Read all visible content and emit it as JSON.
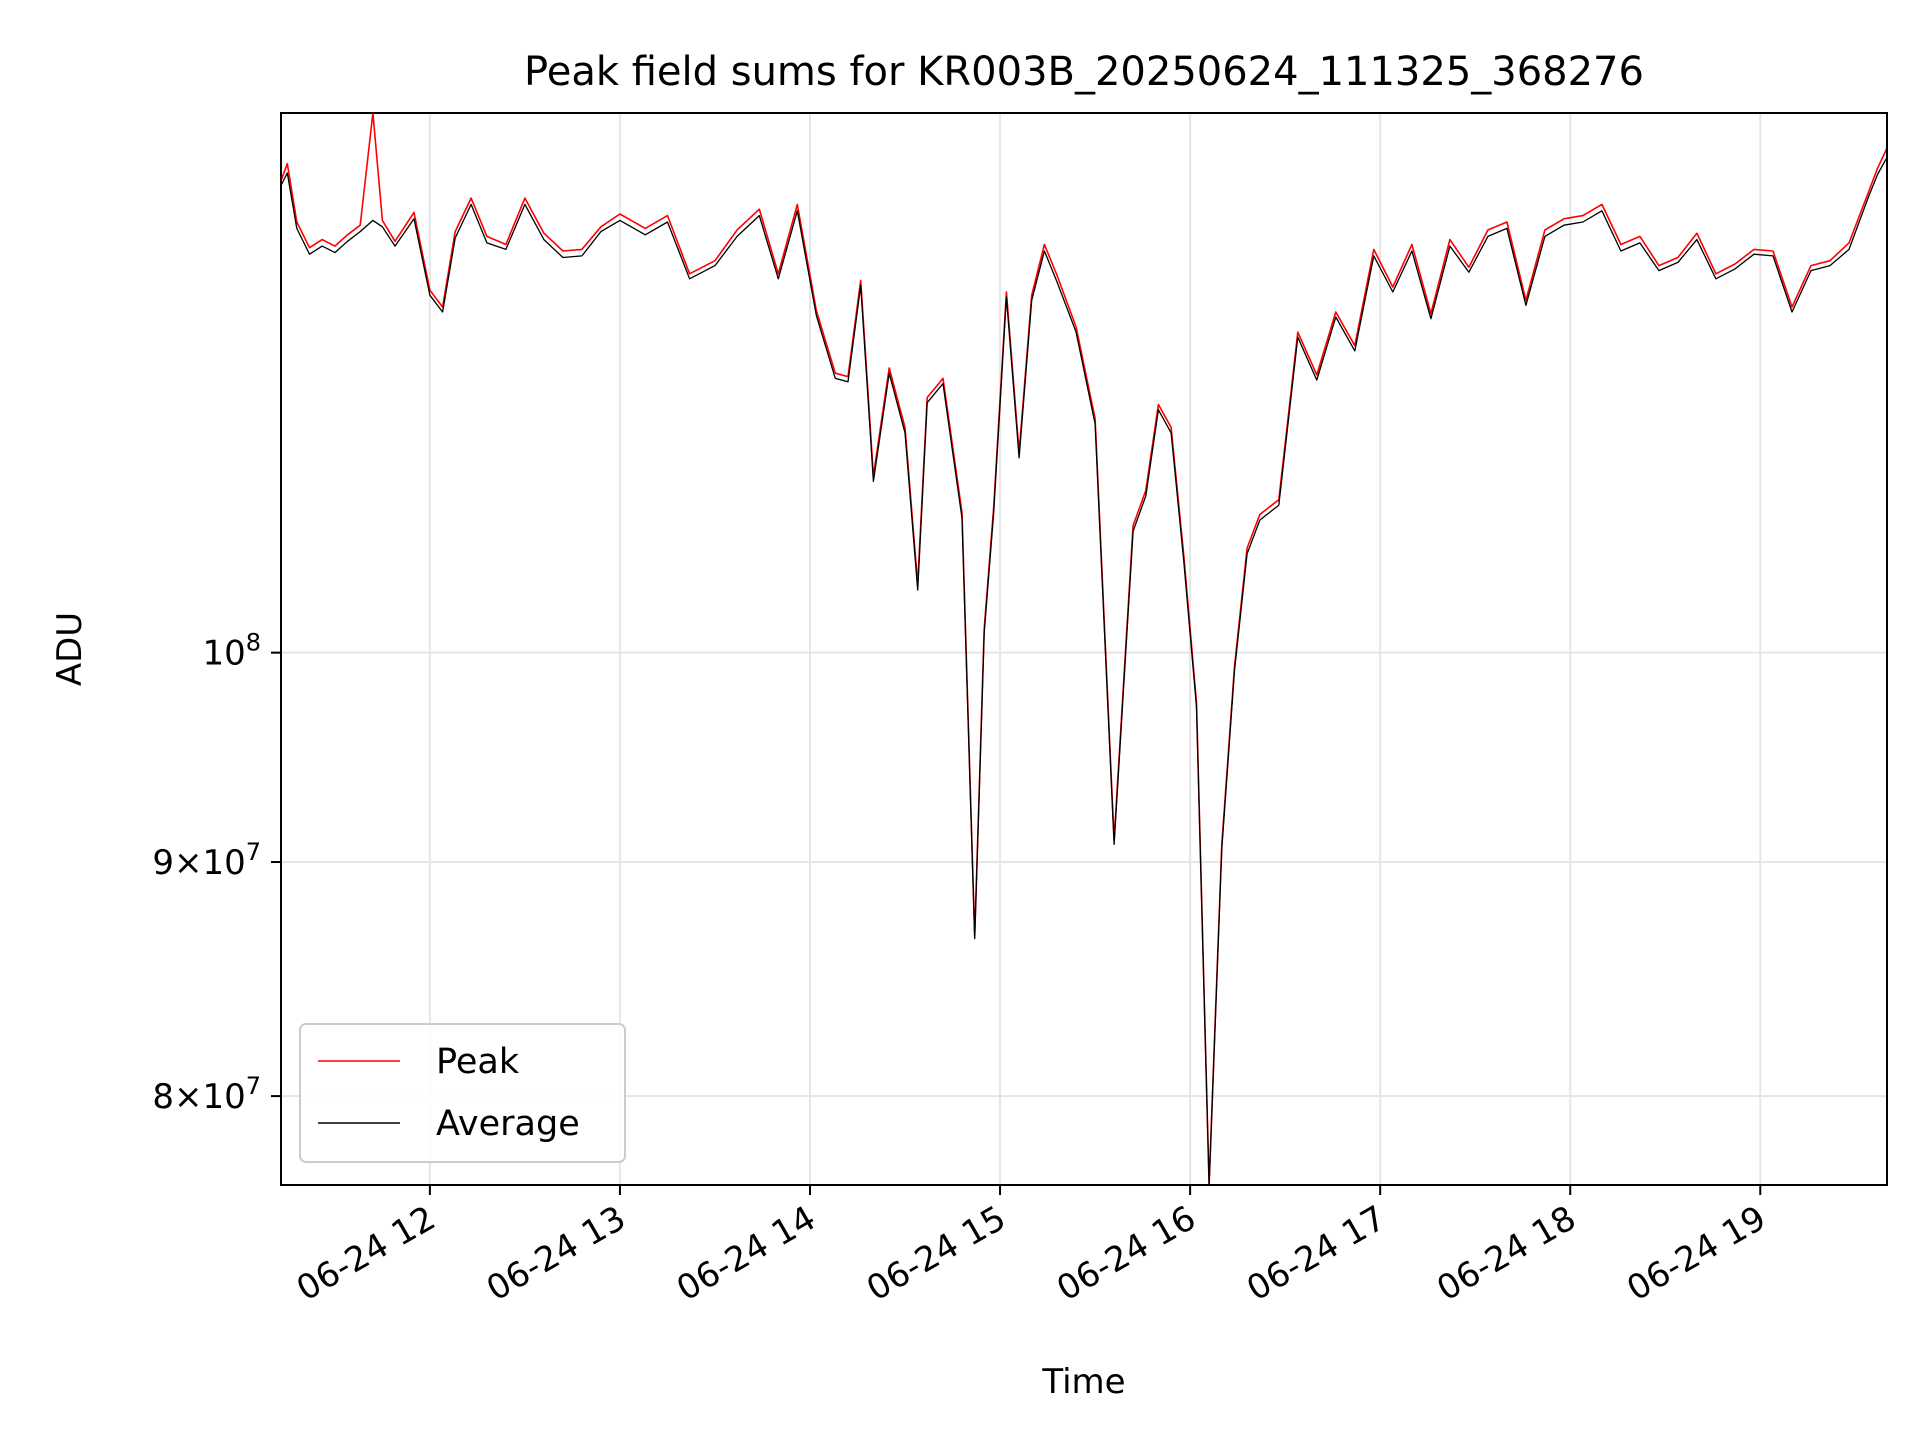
{
  "chart_data": {
    "type": "line",
    "title": "Peak field sums for KR003B_20250624_111325_368276",
    "xlabel": "Time",
    "ylabel": "ADU",
    "x_range": [
      "2025-06-24 11:13",
      "2025-06-24 19:40"
    ],
    "xticks": [
      "06-24 12",
      "06-24 13",
      "06-24 14",
      "06-24 15",
      "06-24 16",
      "06-24 17",
      "06-24 18",
      "06-24 19"
    ],
    "xtick_hours": [
      12,
      13,
      14,
      15,
      16,
      17,
      18,
      19
    ],
    "y_scale": "log",
    "ylim": [
      76500000,
      131200000
    ],
    "yticks": [
      {
        "value": 80000000,
        "mantissa": "8",
        "exponent": "7"
      },
      {
        "value": 90000000,
        "mantissa": "9",
        "exponent": "7"
      },
      {
        "value": 100000000,
        "mantissa": "",
        "exponent": "8"
      }
    ],
    "grid": true,
    "legend_position": "lower-left",
    "colors": {
      "Peak": "#ff0000",
      "Average": "#000000",
      "grid": "#e6e6e6"
    },
    "series": [
      {
        "name": "Peak",
        "x": [
          "11:13",
          "11:15",
          "11:18",
          "11:22",
          "11:26",
          "11:30",
          "11:34",
          "11:38",
          "11:42",
          "11:45",
          "11:49",
          "11:55",
          "12:00",
          "12:04",
          "12:08",
          "12:13",
          "12:18",
          "12:24",
          "12:30",
          "12:36",
          "12:42",
          "12:48",
          "12:54",
          "13:00",
          "13:08",
          "13:15",
          "13:22",
          "13:30",
          "13:37",
          "13:44",
          "13:50",
          "13:56",
          "14:02",
          "14:08",
          "14:12",
          "14:16",
          "14:20",
          "14:25",
          "14:30",
          "14:34",
          "14:37",
          "14:42",
          "14:48",
          "14:52",
          "14:55",
          "14:58",
          "15:02",
          "15:06",
          "15:10",
          "15:14",
          "15:18",
          "15:24",
          "15:30",
          "15:36",
          "15:42",
          "15:46",
          "15:50",
          "15:54",
          "15:58",
          "16:02",
          "16:06",
          "16:10",
          "16:14",
          "16:18",
          "16:22",
          "16:28",
          "16:34",
          "16:40",
          "16:46",
          "16:52",
          "16:58",
          "17:04",
          "17:10",
          "17:16",
          "17:22",
          "17:28",
          "17:34",
          "17:40",
          "17:46",
          "17:52",
          "17:58",
          "18:04",
          "18:10",
          "18:16",
          "18:22",
          "18:28",
          "18:34",
          "18:40",
          "18:46",
          "18:52",
          "18:58",
          "19:04",
          "19:10",
          "19:16",
          "19:22",
          "19:28",
          "19:34",
          "19:37",
          "19:40"
        ],
        "y": [
          126800000,
          127900000,
          124200000,
          122600000,
          123100000,
          122700000,
          123400000,
          124000000,
          131200000,
          124300000,
          123000000,
          124800000,
          120000000,
          119000000,
          123600000,
          125700000,
          123300000,
          122800000,
          125700000,
          123500000,
          122400000,
          122500000,
          123900000,
          124700000,
          123800000,
          124600000,
          121000000,
          121800000,
          123700000,
          125000000,
          121000000,
          125300000,
          118800000,
          115100000,
          114900000,
          120600000,
          109300000,
          115400000,
          112000000,
          103500000,
          113700000,
          114800000,
          107300000,
          86700000,
          101200000,
          107600000,
          119900000,
          110600000,
          119700000,
          122800000,
          120900000,
          117800000,
          112500000,
          91000000,
          106600000,
          108500000,
          113300000,
          112000000,
          105000000,
          97500000,
          76500000,
          90800000,
          99300000,
          105400000,
          107200000,
          108000000,
          117500000,
          115000000,
          118700000,
          116700000,
          122500000,
          120200000,
          122800000,
          118600000,
          123100000,
          121400000,
          123700000,
          124200000,
          119400000,
          123700000,
          124400000,
          124600000,
          125300000,
          122800000,
          123300000,
          121500000,
          122000000,
          123500000,
          121000000,
          121600000,
          122500000,
          122400000,
          119000000,
          121500000,
          121800000,
          122900000,
          126000000,
          127600000,
          128900000
        ]
      },
      {
        "name": "Average",
        "x": [
          "11:13",
          "11:15",
          "11:18",
          "11:22",
          "11:26",
          "11:30",
          "11:34",
          "11:38",
          "11:42",
          "11:45",
          "11:49",
          "11:55",
          "12:00",
          "12:04",
          "12:08",
          "12:13",
          "12:18",
          "12:24",
          "12:30",
          "12:36",
          "12:42",
          "12:48",
          "12:54",
          "13:00",
          "13:08",
          "13:15",
          "13:22",
          "13:30",
          "13:37",
          "13:44",
          "13:50",
          "13:56",
          "14:02",
          "14:08",
          "14:12",
          "14:16",
          "14:20",
          "14:25",
          "14:30",
          "14:34",
          "14:37",
          "14:42",
          "14:48",
          "14:52",
          "14:55",
          "14:58",
          "15:02",
          "15:06",
          "15:10",
          "15:14",
          "15:18",
          "15:24",
          "15:30",
          "15:36",
          "15:42",
          "15:46",
          "15:50",
          "15:54",
          "15:58",
          "16:02",
          "16:06",
          "16:10",
          "16:14",
          "16:18",
          "16:22",
          "16:28",
          "16:34",
          "16:40",
          "16:46",
          "16:52",
          "16:58",
          "17:04",
          "17:10",
          "17:16",
          "17:22",
          "17:28",
          "17:34",
          "17:40",
          "17:46",
          "17:52",
          "17:58",
          "18:04",
          "18:10",
          "18:16",
          "18:22",
          "18:28",
          "18:34",
          "18:40",
          "18:46",
          "18:52",
          "18:58",
          "19:04",
          "19:10",
          "19:16",
          "19:22",
          "19:28",
          "19:34",
          "19:37",
          "19:40"
        ],
        "y": [
          126500000,
          127300000,
          123800000,
          122200000,
          122700000,
          122300000,
          123000000,
          123600000,
          124300000,
          123900000,
          122700000,
          124400000,
          119700000,
          118700000,
          123200000,
          125300000,
          122900000,
          122500000,
          125300000,
          123100000,
          122000000,
          122100000,
          123600000,
          124300000,
          123400000,
          124200000,
          120700000,
          121500000,
          123300000,
          124600000,
          120700000,
          124900000,
          118500000,
          114800000,
          114600000,
          120300000,
          109000000,
          115100000,
          111700000,
          103200000,
          113400000,
          114500000,
          107000000,
          86600000,
          101000000,
          107300000,
          119600000,
          110300000,
          119400000,
          122400000,
          120500000,
          117500000,
          112200000,
          90800000,
          106300000,
          108200000,
          113000000,
          111700000,
          104700000,
          97300000,
          76500000,
          90600000,
          99100000,
          105100000,
          106900000,
          107700000,
          117200000,
          114700000,
          118400000,
          116400000,
          122100000,
          119900000,
          122400000,
          118300000,
          122700000,
          121100000,
          123300000,
          123800000,
          119100000,
          123300000,
          124000000,
          124200000,
          124900000,
          122400000,
          122900000,
          121200000,
          121700000,
          123100000,
          120700000,
          121300000,
          122200000,
          122100000,
          118700000,
          121200000,
          121500000,
          122500000,
          125700000,
          127200000,
          128300000
        ]
      }
    ]
  }
}
